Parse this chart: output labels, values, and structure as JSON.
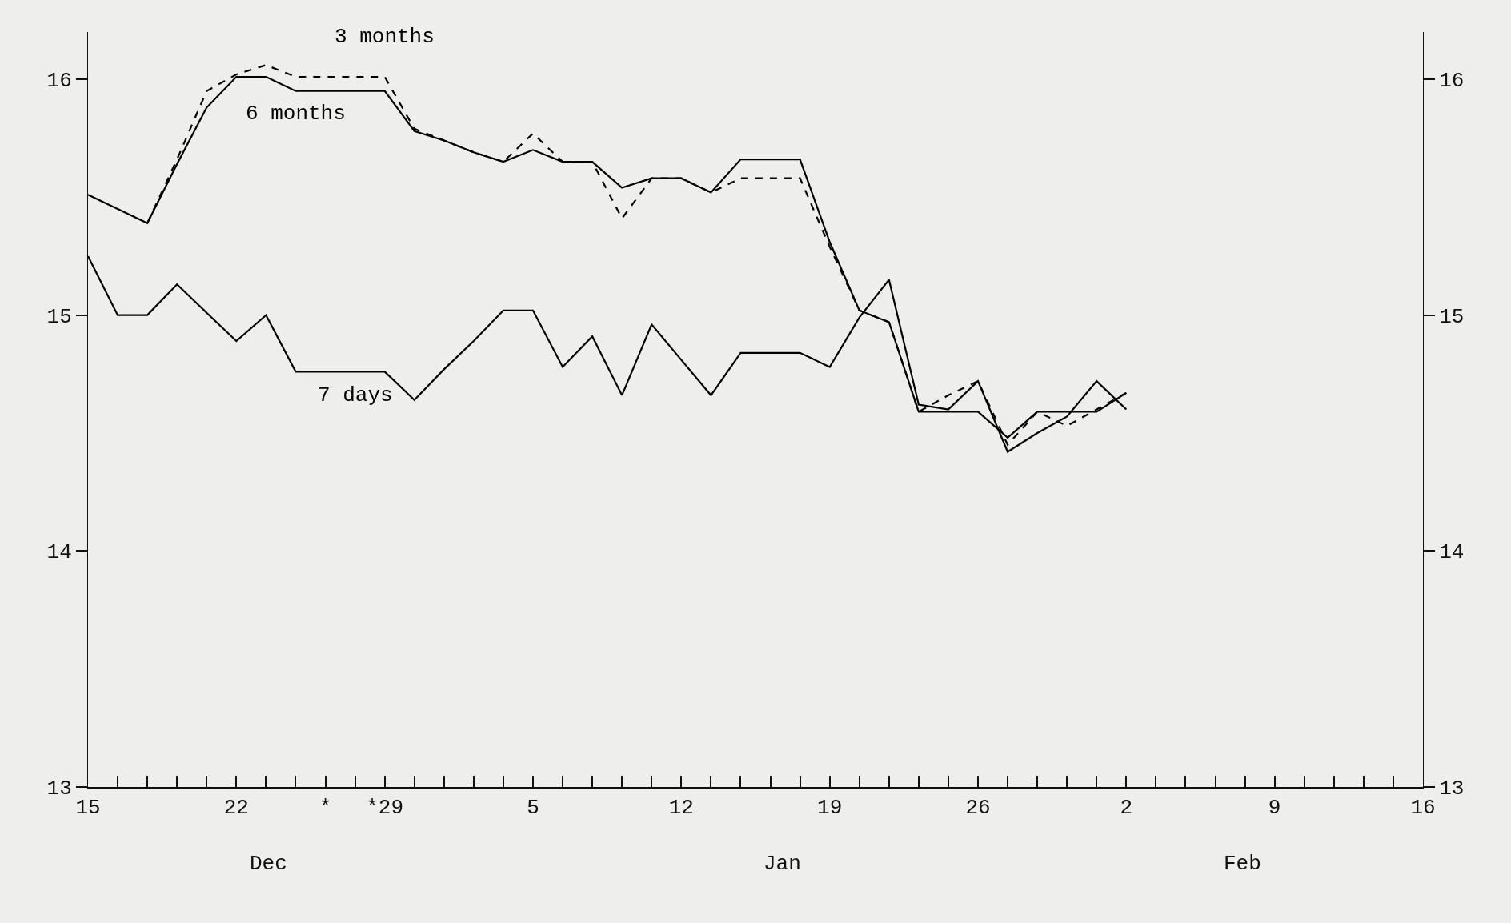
{
  "chart_data": {
    "type": "line",
    "categories": [
      "15",
      null,
      null,
      null,
      null,
      "22",
      null,
      null,
      "*",
      null,
      "*29",
      null,
      null,
      null,
      null,
      "5",
      null,
      null,
      null,
      null,
      "12",
      null,
      null,
      null,
      null,
      "19",
      null,
      null,
      null,
      null,
      "26",
      null,
      null,
      null,
      null,
      "2",
      null,
      null,
      null,
      null,
      "9",
      null,
      null,
      null,
      null,
      "16"
    ],
    "series": [
      {
        "name": "3 months",
        "color": "#000000",
        "line_style": "dashed",
        "values": [
          null,
          null,
          15.39,
          15.66,
          15.95,
          16.02,
          16.06,
          16.01,
          16.01,
          16.01,
          16.01,
          15.79,
          15.74,
          15.69,
          15.65,
          15.77,
          15.65,
          15.65,
          15.41,
          15.58,
          15.58,
          15.52,
          15.58,
          15.58,
          15.58,
          15.29,
          15.02,
          14.97,
          14.59,
          14.66,
          14.72,
          14.45,
          14.59,
          14.53,
          14.6,
          14.67,
          null,
          null,
          null,
          null,
          null,
          null,
          null,
          null,
          null,
          null
        ]
      },
      {
        "name": "6 months",
        "color": "#000000",
        "line_style": "solid",
        "values": [
          15.51,
          15.45,
          15.39,
          15.64,
          15.88,
          16.01,
          16.01,
          15.95,
          15.95,
          15.95,
          15.95,
          15.78,
          15.74,
          15.69,
          15.65,
          15.7,
          15.65,
          15.65,
          15.54,
          15.58,
          15.58,
          15.52,
          15.66,
          15.66,
          15.66,
          15.31,
          15.02,
          14.97,
          14.59,
          14.59,
          14.59,
          14.48,
          14.59,
          14.59,
          14.59,
          14.67,
          null,
          null,
          null,
          null,
          null,
          null,
          null,
          null,
          null,
          null
        ]
      },
      {
        "name": "7 days",
        "color": "#000000",
        "line_style": "solid",
        "values": [
          15.25,
          15.0,
          15.0,
          15.13,
          15.01,
          14.89,
          15.0,
          14.76,
          14.76,
          14.76,
          14.76,
          14.64,
          14.77,
          14.89,
          15.02,
          15.02,
          14.78,
          14.91,
          14.66,
          14.96,
          14.81,
          14.66,
          14.84,
          14.84,
          14.84,
          14.78,
          14.99,
          15.15,
          14.62,
          14.6,
          14.72,
          14.42,
          14.5,
          14.57,
          14.72,
          14.6,
          null,
          null,
          null,
          null,
          null,
          null,
          null,
          null,
          null,
          null
        ]
      }
    ],
    "ylim": [
      13,
      16.2
    ],
    "yticks": [
      13,
      14,
      15,
      16
    ],
    "y2lim": [
      13,
      16.2
    ],
    "y2ticks": [
      13,
      14,
      15,
      16
    ],
    "annotations": [
      "Dec",
      "Jan",
      "Feb"
    ],
    "grid": false,
    "legend": false,
    "marker": "none"
  }
}
